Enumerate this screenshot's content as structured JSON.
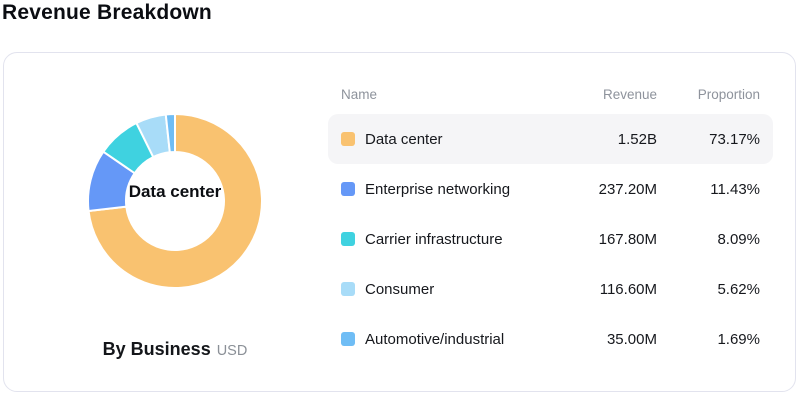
{
  "page_title": "Revenue Breakdown",
  "card": {
    "center_label": "Data center",
    "caption_bold": "By Business",
    "caption_unit": "USD"
  },
  "table": {
    "headers": [
      "Name",
      "Revenue",
      "Proportion"
    ],
    "rows": [
      {
        "name": "Data center",
        "revenue": "1.52B",
        "proportion": "73.17%",
        "color": "#F9C270",
        "highlighted": true
      },
      {
        "name": "Enterprise networking",
        "revenue": "237.20M",
        "proportion": "11.43%",
        "color": "#6598F7",
        "highlighted": false
      },
      {
        "name": "Carrier infrastructure",
        "revenue": "167.80M",
        "proportion": "8.09%",
        "color": "#3FD2E0",
        "highlighted": false
      },
      {
        "name": "Consumer",
        "revenue": "116.60M",
        "proportion": "5.62%",
        "color": "#A8DCF8",
        "highlighted": false
      },
      {
        "name": "Automotive/industrial",
        "revenue": "35.00M",
        "proportion": "1.69%",
        "color": "#6FBDF5",
        "highlighted": false
      }
    ]
  },
  "chart_data": {
    "type": "pie",
    "donut": true,
    "title": "By Business",
    "unit": "USD",
    "center_label": "Data center",
    "categories": [
      "Data center",
      "Enterprise networking",
      "Carrier infrastructure",
      "Consumer",
      "Automotive/industrial"
    ],
    "values": [
      73.17,
      11.43,
      8.09,
      5.62,
      1.69
    ],
    "revenue_labels": [
      "1.52B",
      "237.20M",
      "167.80M",
      "116.60M",
      "35.00M"
    ],
    "colors": [
      "#F9C270",
      "#6598F7",
      "#3FD2E0",
      "#A8DCF8",
      "#6FBDF5"
    ],
    "start_angle_deg": 0,
    "direction": "clockwise",
    "legend_position": "right-table"
  }
}
